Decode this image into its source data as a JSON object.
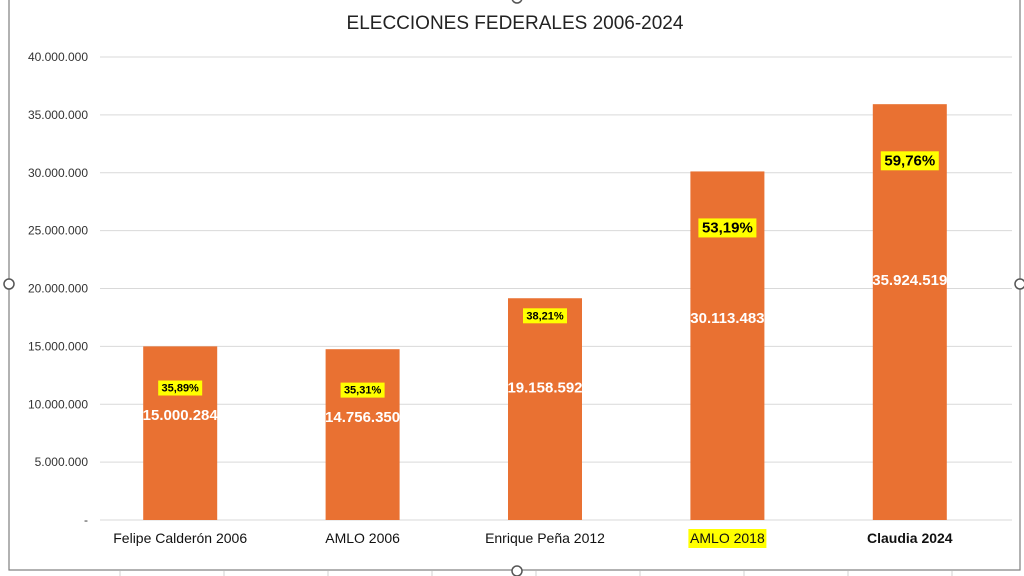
{
  "chart_data": {
    "type": "bar",
    "title": "ELECCIONES FEDERALES 2006-2024",
    "categories": [
      "Felipe Calderón 2006",
      "AMLO 2006",
      "Enrique Peña 2012",
      "AMLO 2018",
      "Claudia 2024"
    ],
    "values": [
      15000284,
      14756350,
      19158592,
      30113483,
      35924519
    ],
    "value_labels": [
      "15.000.284",
      "14.756.350",
      "19.158.592",
      "30.113.483",
      "35.924.519"
    ],
    "percent_labels": [
      "35,89%",
      "35,31%",
      "38,21%",
      "53,19%",
      "59,76%"
    ],
    "percent_values": [
      35.89,
      35.31,
      38.21,
      53.19,
      59.76
    ],
    "ylim": [
      0,
      40000000
    ],
    "y_ticks": [
      {
        "value": 40000000,
        "label": "40.000.000"
      },
      {
        "value": 35000000,
        "label": "35.000.000"
      },
      {
        "value": 30000000,
        "label": "30.000.000"
      },
      {
        "value": 25000000,
        "label": "25.000.000"
      },
      {
        "value": 20000000,
        "label": "20.000.000"
      },
      {
        "value": 15000000,
        "label": "15.000.000"
      },
      {
        "value": 10000000,
        "label": "10.000.000"
      },
      {
        "value": 5000000,
        "label": "5.000.000"
      },
      {
        "value": 0,
        "label": "-"
      }
    ],
    "grid": true,
    "legend": "none",
    "colors": {
      "bar": "#E97132",
      "highlight": "#FFFF00",
      "claudia_label": "#E0141E",
      "grid": "#D9D9D9"
    },
    "category_styles": [
      "normal",
      "normal",
      "normal",
      "highlight",
      "red"
    ]
  }
}
